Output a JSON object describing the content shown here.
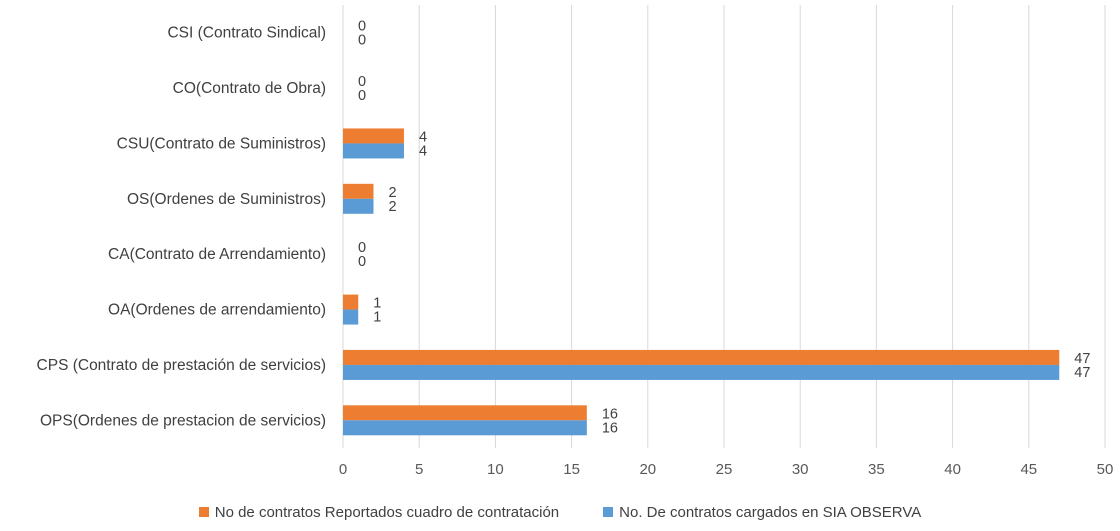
{
  "chart_data": {
    "type": "bar",
    "orientation": "horizontal",
    "categories": [
      "CSI (Contrato Sindical)",
      "CO(Contrato de Obra)",
      "CSU(Contrato de Suministros)",
      "OS(Ordenes de Suministros)",
      "CA(Contrato de Arrendamiento)",
      "OA(Ordenes de arrendamiento)",
      "CPS (Contrato de prestación de servicios)",
      "OPS(Ordenes de prestacion de servicios)"
    ],
    "series": [
      {
        "name": "No de contratos Reportados cuadro de contratación",
        "color": "#ED7D31",
        "values": [
          0,
          0,
          4,
          2,
          0,
          1,
          47,
          16
        ]
      },
      {
        "name": "No. De contratos cargados en SIA OBSERVA",
        "color": "#5B9BD5",
        "values": [
          0,
          0,
          4,
          2,
          0,
          1,
          47,
          16
        ]
      }
    ],
    "xlim": [
      0,
      50
    ],
    "xticks": [
      0,
      5,
      10,
      15,
      20,
      25,
      30,
      35,
      40,
      45,
      50
    ],
    "grid": "vertical",
    "legend": "bottom",
    "data_labels": true
  }
}
